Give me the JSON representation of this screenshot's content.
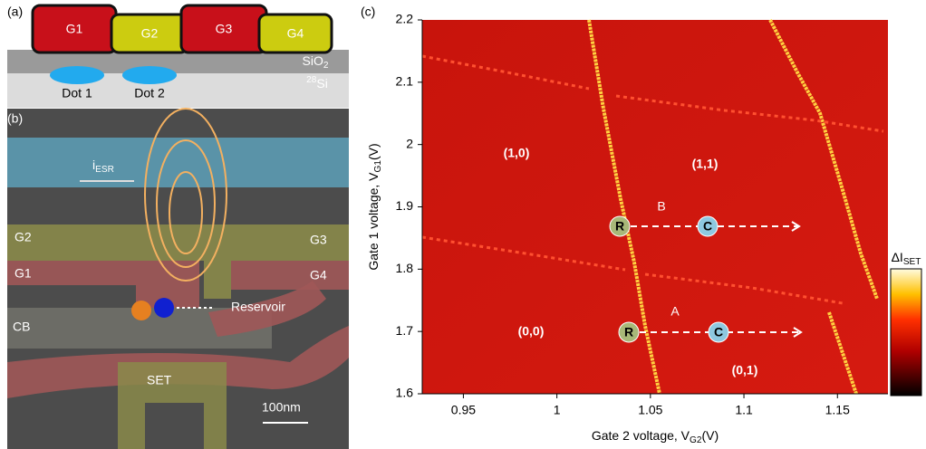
{
  "panel_labels": [
    "(a)",
    "(b)",
    "(c)"
  ],
  "device_cross_section": {
    "gates": [
      "G1",
      "G2",
      "G3",
      "G4"
    ],
    "oxide": {
      "text": "SiO",
      "sub": "2"
    },
    "substrate": {
      "sup": "28",
      "text": "Si"
    },
    "dots": [
      "Dot 1",
      "Dot 2"
    ]
  },
  "micrograph": {
    "esr": {
      "text": "i",
      "sub": "ESR"
    },
    "g2": "G2",
    "g3": "G3",
    "g1": "G1",
    "g4": "G4",
    "cb": "CB",
    "reservoir": "Reservoir",
    "set": "SET",
    "scale": "100nm"
  },
  "chart_data": {
    "type": "heatmap",
    "x_label": {
      "text": "Gate 2 voltage, V",
      "sub": "G2",
      "unit": "(V)"
    },
    "y_label": {
      "text": "Gate 1 voltage, V",
      "sub": "G1",
      "unit": "(V)"
    },
    "xlim": [
      0.928,
      1.177
    ],
    "ylim": [
      1.6,
      2.2
    ],
    "xticks": [
      0.95,
      1,
      1.05,
      1.1,
      1.15
    ],
    "yticks": [
      1.6,
      1.7,
      1.8,
      1.9,
      2,
      2.1,
      2.2
    ],
    "regions": [
      "(1,0)",
      "(1,1)",
      "(0,0)",
      "(0,1)"
    ],
    "pulses": [
      {
        "name": "B",
        "start": "R",
        "end": "C"
      },
      {
        "name": "A",
        "start": "R",
        "end": "C"
      }
    ],
    "colorbar": {
      "text": "ΔI",
      "sub": "SET"
    }
  }
}
